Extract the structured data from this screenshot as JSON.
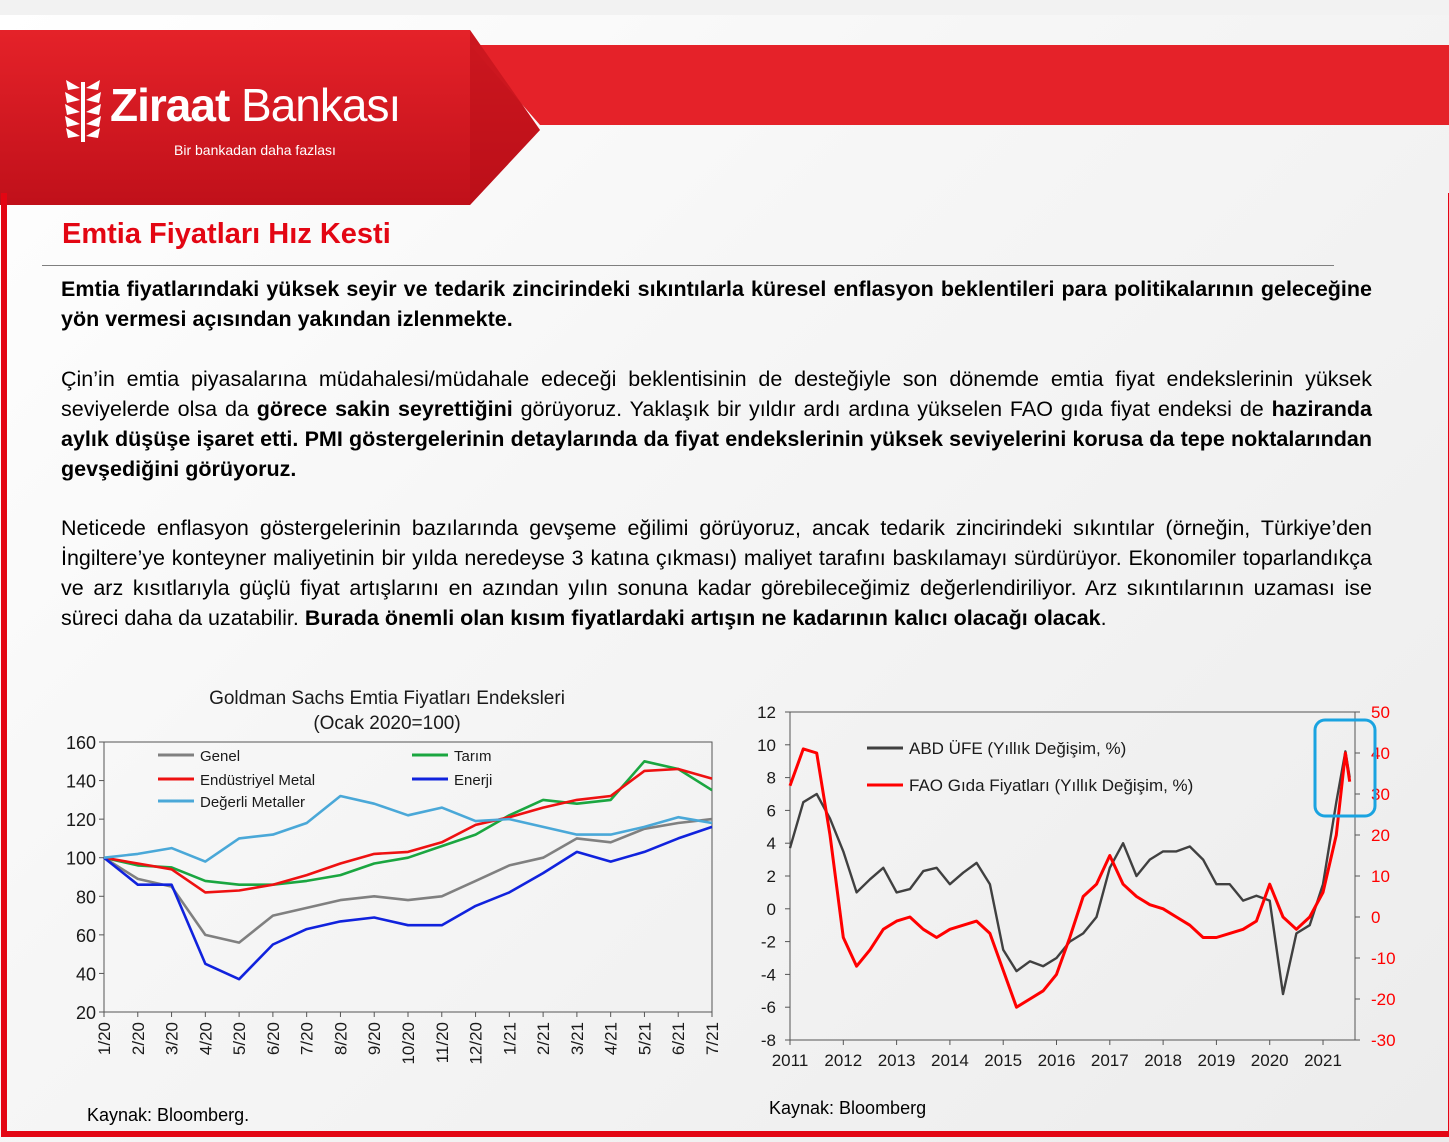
{
  "header": {
    "logo_word1": "Ziraat",
    "logo_word2": "Bankası",
    "slogan": "Bir bankadan daha fazlası",
    "brand_color": "#e30613"
  },
  "title": "Emtia Fiyatları Hız Kesti",
  "paragraphs": {
    "p1": "Emtia fiyatlarındaki yüksek seyir ve tedarik zincirindeki sıkıntılarla küresel enflasyon beklentileri para politikalarının geleceğine yön vermesi açısından yakından izlenmekte.",
    "p2_a": "Çin’in emtia piyasalarına müdahalesi/müdahale edeceği beklentisinin de desteğiyle son dönemde emtia fiyat endekslerinin yüksek seviyelerde olsa da ",
    "p2_b": "görece sakin seyrettiğini",
    "p2_c": " görüyoruz. Yaklaşık bir yıldır ardı ardına yükselen FAO gıda fiyat endeksi de ",
    "p2_d": "haziranda aylık düşüşe işaret etti. PMI göstergelerinin detaylarında da fiyat endekslerinin yüksek seviyelerini korusa da tepe noktalarından gevşediğini görüyoruz.",
    "p3_a": "Neticede enflasyon göstergelerinin bazılarında gevşeme eğilimi görüyoruz, ancak tedarik zincirindeki sıkıntılar (örneğin, Türkiye’den İngiltere’ye konteyner maliyetinin bir yılda neredeyse 3 katına çıkması) maliyet tarafını baskılamayı sürdürüyor. Ekonomiler toparlandıkça ve arz kısıtlarıyla güçlü fiyat artışlarını en azından yılın sonuna kadar görebileceğimiz değerlendiriliyor. Arz sıkıntılarının uzaması ise süreci daha da uzatabilir. ",
    "p3_b": "Burada önemli olan kısım fiyatlardaki artışın ne kadarının kalıcı olacağı olacak",
    "p3_c": "."
  },
  "sources": {
    "left": "Kaynak: Bloomberg.",
    "right": "Kaynak: Bloomberg"
  },
  "chart_data": [
    {
      "type": "line",
      "title": "Goldman Sachs Emtia Fiyatları Endeksleri",
      "subtitle": "(Ocak 2020=100)",
      "categories": [
        "1/20",
        "2/20",
        "3/20",
        "4/20",
        "5/20",
        "6/20",
        "7/20",
        "8/20",
        "9/20",
        "10/20",
        "11/20",
        "12/20",
        "1/21",
        "2/21",
        "3/21",
        "4/21",
        "5/21",
        "6/21",
        "7/21"
      ],
      "ylim": [
        20,
        160
      ],
      "yticks": [
        20,
        40,
        60,
        80,
        100,
        120,
        140,
        160
      ],
      "legend": "top-left",
      "grid": false,
      "series": [
        {
          "name": "Genel",
          "color": "#808080",
          "values": [
            100,
            89,
            85,
            60,
            56,
            70,
            74,
            78,
            80,
            78,
            80,
            88,
            96,
            100,
            110,
            108,
            115,
            118,
            120
          ]
        },
        {
          "name": "Tarım",
          "color": "#1aa640",
          "values": [
            100,
            96,
            95,
            88,
            86,
            86,
            88,
            91,
            97,
            100,
            106,
            112,
            122,
            130,
            128,
            130,
            150,
            146,
            135
          ]
        },
        {
          "name": "Endüstriyel Metal",
          "color": "#ee1111",
          "values": [
            100,
            97,
            94,
            82,
            83,
            86,
            91,
            97,
            102,
            103,
            108,
            117,
            121,
            126,
            130,
            132,
            145,
            146,
            141
          ]
        },
        {
          "name": "Enerji",
          "color": "#1022dd",
          "values": [
            100,
            86,
            86,
            45,
            37,
            55,
            63,
            67,
            69,
            65,
            65,
            75,
            82,
            92,
            103,
            98,
            103,
            110,
            116
          ]
        },
        {
          "name": "Değerli Metaller",
          "color": "#4aa8d8",
          "values": [
            100,
            102,
            105,
            98,
            110,
            112,
            118,
            132,
            128,
            122,
            126,
            119,
            120,
            116,
            112,
            112,
            116,
            121,
            118
          ]
        }
      ]
    },
    {
      "type": "line",
      "x_ticks": [
        "2011",
        "2012",
        "2013",
        "2014",
        "2015",
        "2016",
        "2017",
        "2018",
        "2019",
        "2020",
        "2021"
      ],
      "ylim": [
        -8,
        12
      ],
      "yticks": [
        -8,
        -6,
        -4,
        -2,
        0,
        2,
        4,
        6,
        8,
        10,
        12
      ],
      "y2lim": [
        -30,
        50
      ],
      "y2ticks": [
        -30,
        -20,
        -10,
        0,
        10,
        20,
        30,
        40,
        50
      ],
      "legend": "top-left",
      "grid": false,
      "series": [
        {
          "name": "ABD ÜFE (Yıllık Değişim, %)",
          "color": "#404040",
          "axis": "left",
          "x": [
            2011.0,
            2011.25,
            2011.5,
            2011.75,
            2012.0,
            2012.25,
            2012.5,
            2012.75,
            2013.0,
            2013.25,
            2013.5,
            2013.75,
            2014.0,
            2014.25,
            2014.5,
            2014.75,
            2015.0,
            2015.25,
            2015.5,
            2015.75,
            2016.0,
            2016.25,
            2016.5,
            2016.75,
            2017.0,
            2017.25,
            2017.5,
            2017.75,
            2018.0,
            2018.25,
            2018.5,
            2018.75,
            2019.0,
            2019.25,
            2019.5,
            2019.75,
            2020.0,
            2020.25,
            2020.5,
            2020.75,
            2021.0,
            2021.25,
            2021.42,
            2021.5
          ],
          "values": [
            3.7,
            6.5,
            7.0,
            5.5,
            3.5,
            1.0,
            1.8,
            2.5,
            1.0,
            1.2,
            2.3,
            2.5,
            1.5,
            2.2,
            2.8,
            1.5,
            -2.5,
            -3.8,
            -3.2,
            -3.5,
            -3.0,
            -2.0,
            -1.5,
            -0.5,
            2.5,
            4.0,
            2.0,
            3.0,
            3.5,
            3.5,
            3.8,
            3.0,
            1.5,
            1.5,
            0.5,
            0.8,
            0.5,
            -5.2,
            -1.5,
            -1.0,
            1.5,
            6.5,
            9.6,
            8.0
          ]
        },
        {
          "name": "FAO Gıda Fiyatları (Yıllık Değişim, %)",
          "color": "#ff0000",
          "axis": "right",
          "x": [
            2011.0,
            2011.25,
            2011.5,
            2011.75,
            2012.0,
            2012.25,
            2012.5,
            2012.75,
            2013.0,
            2013.25,
            2013.5,
            2013.75,
            2014.0,
            2014.25,
            2014.5,
            2014.75,
            2015.0,
            2015.25,
            2015.5,
            2015.75,
            2016.0,
            2016.25,
            2016.5,
            2016.75,
            2017.0,
            2017.25,
            2017.5,
            2017.75,
            2018.0,
            2018.25,
            2018.5,
            2018.75,
            2019.0,
            2019.25,
            2019.5,
            2019.75,
            2020.0,
            2020.25,
            2020.5,
            2020.75,
            2021.0,
            2021.25,
            2021.42,
            2021.5
          ],
          "values": [
            32,
            41,
            40,
            20,
            -5,
            -12,
            -8,
            -3,
            -1,
            0,
            -3,
            -5,
            -3,
            -2,
            -1,
            -4,
            -13,
            -22,
            -20,
            -18,
            -14,
            -5,
            5,
            8,
            15,
            8,
            5,
            3,
            2,
            0,
            -2,
            -5,
            -5,
            -4,
            -3,
            -1,
            8,
            0,
            -3,
            0,
            6,
            20,
            40,
            33
          ]
        }
      ],
      "highlight": {
        "color": "#1aa3e0"
      }
    }
  ]
}
